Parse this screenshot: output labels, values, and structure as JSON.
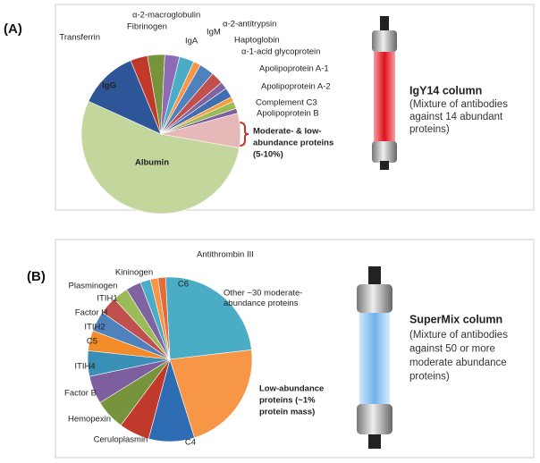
{
  "chart_data": [
    {
      "type": "pie",
      "panel_label": "(A)",
      "categories": [
        "Albumin",
        "IgG",
        "Transferrin",
        "Fibrinogen",
        "α-2-macroglobulin",
        "IgA",
        "IgM",
        "α-2-antitrypsin",
        "Haptoglobin",
        "α-1-acid glycoprotein",
        "Apolipoprotein A-1",
        "Apolipoprotein A-2",
        "Complement C3",
        "Apolipoprotein B",
        "Moderate- & low-abundance proteins (5-10%)"
      ],
      "values": [
        54,
        12,
        3.5,
        3.5,
        3,
        3,
        1.5,
        3,
        2.5,
        1.5,
        2,
        1,
        1.5,
        1,
        7
      ],
      "colors": [
        "#c3d69b",
        "#2e5597",
        "#c0392b",
        "#77933c",
        "#8e6bb5",
        "#4bacc6",
        "#f79646",
        "#4f81bd",
        "#c0504d",
        "#8064a2",
        "#3f6fb0",
        "#f59d3d",
        "#9bbb59",
        "#7d5fa0",
        "#e6b9b8"
      ],
      "annotation": [
        "Moderate- & low-",
        "abundance proteins",
        "(5-10%)"
      ],
      "column_title": "IgY14 column",
      "column_text": [
        "(Mixture of antibodies",
        "against 14 abundant",
        "proteins)"
      ]
    },
    {
      "type": "pie",
      "panel_label": "(B)",
      "categories": [
        "Other ~30 moderate-abundance proteins",
        "Low-abundance proteins (~1% protein mass)",
        "C4",
        "Ceruloplasmin",
        "Hemopexin",
        "Factor B",
        "ITIH4",
        "C5",
        "ITIH2",
        "Factor H",
        "ITIH1",
        "Plasminogen",
        "Kininogen",
        "Antithrombin III",
        "C6"
      ],
      "values": [
        24,
        22,
        9,
        6,
        6,
        5.5,
        5,
        4,
        4,
        3.5,
        3,
        3,
        2,
        1.5,
        1.5
      ],
      "colors": [
        "#4bacc6",
        "#f79646",
        "#2e6db4",
        "#c0392b",
        "#77933c",
        "#7d5fa0",
        "#3a8fb7",
        "#f28c28",
        "#4f81bd",
        "#c0504d",
        "#9bbb59",
        "#8064a2",
        "#4bacc6",
        "#f79646",
        "#e46c3a"
      ],
      "label_lines": {
        "0": [
          "Other ~30 moderate-",
          "abundance proteins"
        ],
        "1": [
          "Low-abundance",
          "proteins  (~1%",
          "protein mass)"
        ]
      },
      "column_title": "SuperMix column",
      "column_text": [
        "(Mixture of antibodies",
        "against 50 or more",
        "moderate abundance",
        "proteins)"
      ]
    }
  ]
}
